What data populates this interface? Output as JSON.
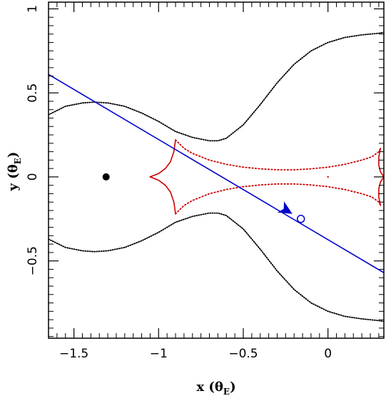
{
  "chart_data": {
    "type": "line",
    "title": "",
    "xlabel": {
      "main": "x (θ",
      "sub": "E",
      "end": ")"
    },
    "ylabel": {
      "main": "y (θ",
      "sub": "E",
      "end": ")"
    },
    "xlim": [
      -1.65,
      0.33
    ],
    "ylim": [
      -0.96,
      1.04
    ],
    "x_ticks": [
      -1.5,
      -1,
      -0.5,
      0
    ],
    "y_ticks": [
      -0.5,
      0,
      0.5,
      1
    ],
    "x_tick_labels": [
      "−1.5",
      "−1",
      "−0.5",
      "0"
    ],
    "y_tick_labels": [
      "−0.5",
      "0",
      "0.5",
      "1"
    ],
    "grid": false,
    "colors": {
      "critical_curve": "#000000",
      "caustic": "#cc0000",
      "trajectory": "#0000cc"
    },
    "series": [
      {
        "role": "critical-curve-upper",
        "color": "#000000",
        "x": [
          -1.65,
          -1.55,
          -1.45,
          -1.38,
          -1.3,
          -1.2,
          -1.1,
          -1.0,
          -0.9,
          -0.8,
          -0.7,
          -0.65,
          -0.6,
          -0.5,
          -0.4,
          -0.3,
          -0.2,
          -0.1,
          0.0,
          0.1,
          0.2,
          0.3,
          0.33
        ],
        "y": [
          0.37,
          0.42,
          0.44,
          0.445,
          0.44,
          0.42,
          0.38,
          0.33,
          0.27,
          0.235,
          0.215,
          0.215,
          0.23,
          0.31,
          0.43,
          0.56,
          0.67,
          0.75,
          0.8,
          0.83,
          0.845,
          0.855,
          0.86
        ]
      },
      {
        "role": "critical-curve-lower",
        "color": "#000000",
        "x": [
          -1.65,
          -1.55,
          -1.45,
          -1.38,
          -1.3,
          -1.2,
          -1.1,
          -1.0,
          -0.9,
          -0.8,
          -0.7,
          -0.65,
          -0.6,
          -0.5,
          -0.4,
          -0.3,
          -0.2,
          -0.1,
          0.0,
          0.1,
          0.2,
          0.3,
          0.33
        ],
        "y": [
          -0.37,
          -0.42,
          -0.44,
          -0.445,
          -0.44,
          -0.42,
          -0.38,
          -0.33,
          -0.27,
          -0.235,
          -0.215,
          -0.215,
          -0.23,
          -0.31,
          -0.43,
          -0.56,
          -0.67,
          -0.75,
          -0.8,
          -0.83,
          -0.845,
          -0.855,
          -0.86
        ]
      },
      {
        "role": "caustic-left-cusp-upper",
        "color": "#cc0000",
        "x": [
          -1.05,
          -1.0,
          -0.96,
          -0.93,
          -0.91,
          -0.9
        ],
        "y": [
          0.0,
          0.02,
          0.05,
          0.09,
          0.15,
          0.22
        ]
      },
      {
        "role": "caustic-left-cusp-lower",
        "color": "#cc0000",
        "x": [
          -1.05,
          -1.0,
          -0.96,
          -0.93,
          -0.91,
          -0.9
        ],
        "y": [
          0.0,
          -0.02,
          -0.05,
          -0.09,
          -0.15,
          -0.22
        ]
      },
      {
        "role": "caustic-fold-upper",
        "color": "#cc0000",
        "x": [
          -0.9,
          -0.85,
          -0.8,
          -0.7,
          -0.6,
          -0.5,
          -0.4,
          -0.3,
          -0.2,
          -0.1,
          0.0,
          0.1,
          0.2,
          0.26,
          0.3,
          0.31
        ],
        "y": [
          0.22,
          0.17,
          0.14,
          0.1,
          0.075,
          0.058,
          0.048,
          0.042,
          0.042,
          0.048,
          0.058,
          0.075,
          0.1,
          0.12,
          0.15,
          0.17
        ]
      },
      {
        "role": "caustic-fold-lower",
        "color": "#cc0000",
        "x": [
          -0.9,
          -0.85,
          -0.8,
          -0.7,
          -0.6,
          -0.5,
          -0.4,
          -0.3,
          -0.2,
          -0.1,
          0.0,
          0.1,
          0.2,
          0.26,
          0.3,
          0.31
        ],
        "y": [
          -0.22,
          -0.17,
          -0.14,
          -0.1,
          -0.075,
          -0.058,
          -0.048,
          -0.042,
          -0.042,
          -0.048,
          -0.058,
          -0.075,
          -0.1,
          -0.12,
          -0.15,
          -0.17
        ]
      },
      {
        "role": "caustic-right-cusp-upper",
        "color": "#cc0000",
        "x": [
          0.31,
          0.3,
          0.3,
          0.31,
          0.33
        ],
        "y": [
          0.17,
          0.12,
          0.07,
          0.03,
          0.0
        ]
      },
      {
        "role": "caustic-right-cusp-lower",
        "color": "#cc0000",
        "x": [
          0.31,
          0.3,
          0.3,
          0.31,
          0.33
        ],
        "y": [
          -0.17,
          -0.12,
          -0.07,
          -0.03,
          0.0
        ]
      },
      {
        "role": "source-trajectory",
        "color": "#0000cc",
        "x": [
          -1.65,
          0.33
        ],
        "y": [
          0.61,
          -0.57
        ]
      }
    ],
    "points": [
      {
        "role": "lens-mass",
        "x": -1.31,
        "y": 0.0,
        "marker": "filled-circle",
        "color": "#000000"
      },
      {
        "role": "source-position",
        "x": -0.16,
        "y": -0.25,
        "marker": "open-circle",
        "color": "#0000cc"
      },
      {
        "role": "caustic-center-dot",
        "x": 0.0,
        "y": 0.0,
        "marker": "dot",
        "color": "#cc0000"
      }
    ],
    "arrow": {
      "role": "trajectory-direction",
      "x": -0.21,
      "y": -0.22,
      "direction": "down-right",
      "color": "#0000cc"
    }
  }
}
